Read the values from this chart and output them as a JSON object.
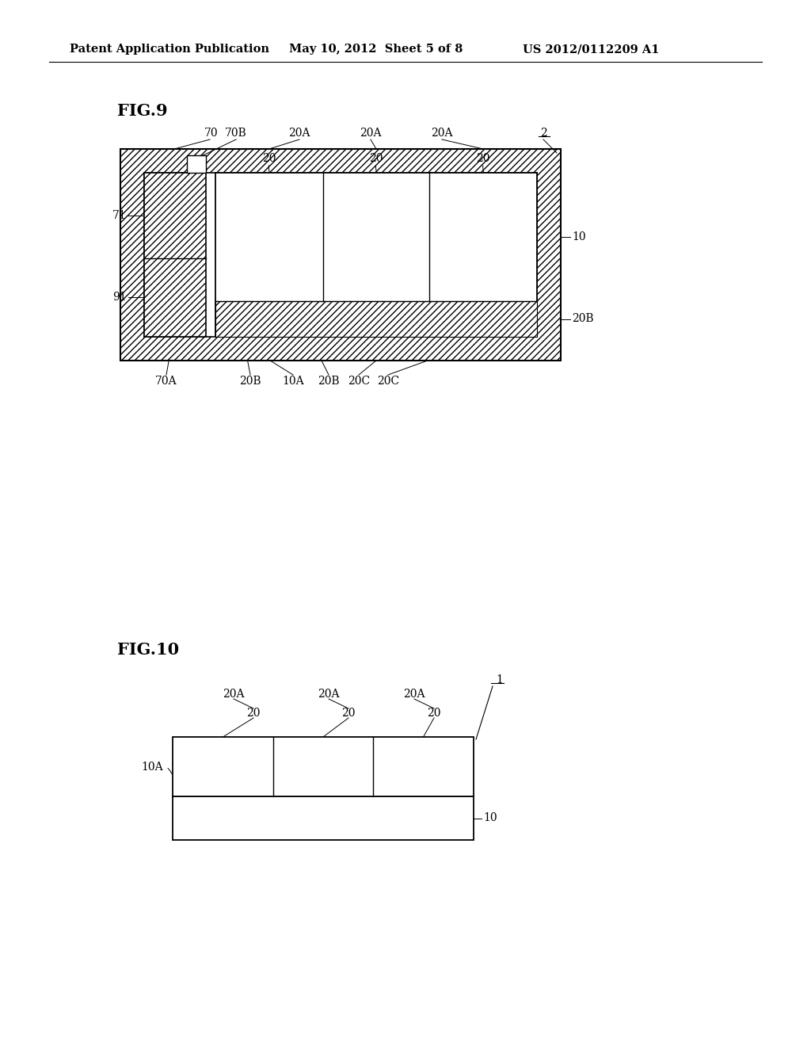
{
  "header_left": "Patent Application Publication",
  "header_mid": "May 10, 2012  Sheet 5 of 8",
  "header_right": "US 2012/0112209 A1",
  "fig9_label": "FIG.9",
  "fig10_label": "FIG.10",
  "bg_color": "#ffffff",
  "line_color": "#000000"
}
